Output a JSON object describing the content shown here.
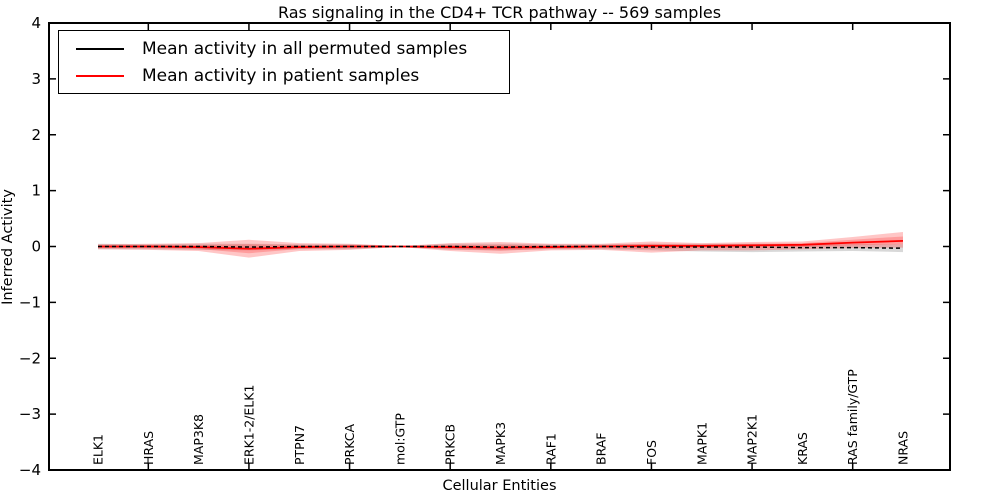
{
  "chart_data": {
    "type": "line",
    "title": "Ras signaling in the CD4+ TCR pathway -- 569 samples",
    "xlabel": "Cellular Entities",
    "ylabel": "Inferred Activity",
    "ylim": [
      -4,
      4
    ],
    "yticks": [
      4,
      3,
      2,
      1,
      0,
      -1,
      -2,
      -3,
      -4
    ],
    "grid": false,
    "legend_position": "upper left",
    "categories": [
      "ELK1",
      "HRAS",
      "MAP3K8",
      "ERK1-2/ELK1",
      "PTPN7",
      "PRKCA",
      "mol:GTP",
      "PRKCB",
      "MAPK3",
      "RAF1",
      "BRAF",
      "FOS",
      "MAPK1",
      "MAP2K1",
      "KRAS",
      "RAS family/GTP",
      "NRAS"
    ],
    "series": [
      {
        "name": "Mean activity in all permuted samples",
        "color": "#000000",
        "line_style": "dashed",
        "band_color": "#999999",
        "values": [
          0.0,
          0.0,
          0.0,
          -0.01,
          0.0,
          0.0,
          0.0,
          0.0,
          -0.01,
          0.0,
          0.0,
          -0.01,
          -0.01,
          -0.01,
          -0.02,
          -0.02,
          -0.03
        ],
        "band_upper": [
          0.05,
          0.04,
          0.05,
          0.05,
          0.04,
          0.04,
          0.01,
          0.05,
          0.05,
          0.04,
          0.04,
          0.05,
          0.05,
          0.05,
          0.04,
          0.04,
          0.04
        ],
        "band_lower": [
          -0.05,
          -0.05,
          -0.06,
          -0.07,
          -0.05,
          -0.05,
          -0.01,
          -0.06,
          -0.07,
          -0.05,
          -0.05,
          -0.07,
          -0.09,
          -0.1,
          -0.09,
          -0.08,
          -0.1
        ]
      },
      {
        "name": "Mean activity in patient samples",
        "color": "#ff0000",
        "line_style": "solid",
        "band_color": "#ff3333",
        "values": [
          0.0,
          0.0,
          -0.01,
          -0.04,
          -0.01,
          0.0,
          0.0,
          -0.01,
          -0.02,
          -0.01,
          0.0,
          0.01,
          0.01,
          0.02,
          0.03,
          0.07,
          0.1
        ],
        "band_upper": [
          0.04,
          0.05,
          0.06,
          0.12,
          0.06,
          0.05,
          0.01,
          0.06,
          0.08,
          0.05,
          0.05,
          0.09,
          0.06,
          0.08,
          0.09,
          0.17,
          0.26
        ],
        "band_lower": [
          -0.05,
          -0.06,
          -0.08,
          -0.2,
          -0.08,
          -0.06,
          -0.01,
          -0.08,
          -0.13,
          -0.07,
          -0.06,
          -0.11,
          -0.07,
          -0.07,
          -0.05,
          -0.03,
          -0.02
        ]
      }
    ]
  }
}
